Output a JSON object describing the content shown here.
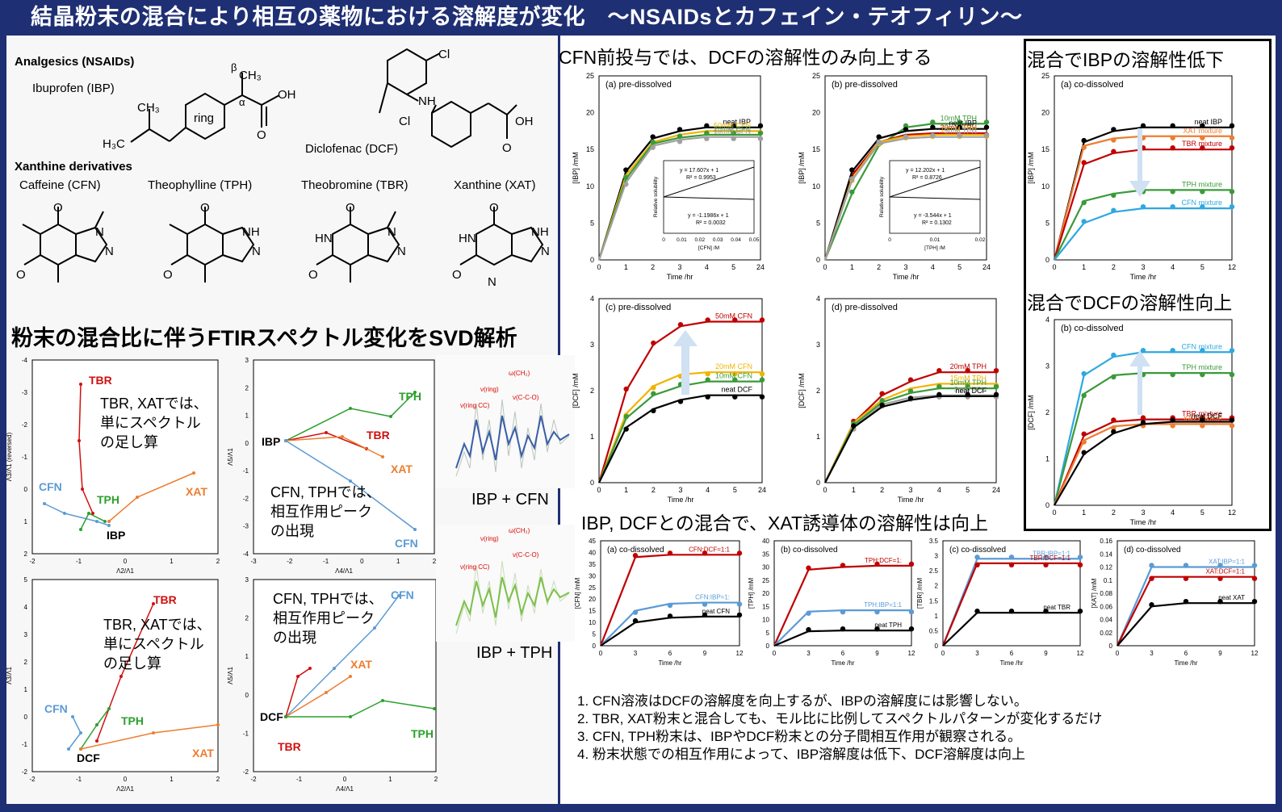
{
  "title": "結晶粉末の混合により相互の薬物における溶解度が変化　～NSAIDsとカフェイン・テオフィリン～",
  "structures": {
    "analgesics_heading": "Analgesics (NSAIDs)",
    "ibuprofen_label": "Ibuprofen (IBP)",
    "diclofenac_label": "Diclofenac (DCF)",
    "xanthine_heading": "Xanthine derivatives",
    "caffeine_label": "Caffeine (CFN)",
    "theophylline_label": "Theophylline (TPH)",
    "theobromine_label": "Theobromine (TBR)",
    "xanthine_label": "Xanthine (XAT)",
    "ring_label": "ring",
    "alpha": "α",
    "beta": "β"
  },
  "svd": {
    "heading": "粉末の混合比に伴うFTIRスペクトル変化をSVD解析",
    "note_sum": [
      "TBR, XATでは、",
      "単にスペクトル",
      "の足し算"
    ],
    "note_interact": [
      "CFN, TPHでは、",
      "相互作用ピーク",
      "の出現"
    ],
    "plots": [
      {
        "xlabel": "Λ2/Λ1",
        "ylabel": "Λ3/Λ1 (reversed)",
        "xticks": [
          "-2",
          "-1",
          "0",
          "1",
          "2"
        ],
        "yticks": [
          "-4",
          "-3",
          "-2",
          "-1",
          "0",
          "1",
          "2"
        ],
        "labels": [
          "TBR",
          "CFN",
          "TPH",
          "IBP",
          "XAT"
        ]
      },
      {
        "xlabel": "Λ4/Λ1",
        "ylabel": "Λ5/Λ1",
        "xticks": [
          "-3",
          "-2",
          "-1",
          "0",
          "1",
          "2"
        ],
        "yticks": [
          "3",
          "2",
          "1",
          "0",
          "-1",
          "-2",
          "-3",
          "-4"
        ],
        "labels": [
          "TPH",
          "TBR",
          "IBP",
          "XAT",
          "CFN"
        ]
      },
      {
        "xlabel": "Λ2/Λ1",
        "ylabel": "Λ3/Λ1",
        "xticks": [
          "-2",
          "-1",
          "0",
          "1",
          "2"
        ],
        "yticks": [
          "5",
          "4",
          "3",
          "2",
          "1",
          "0",
          "-1",
          "-2"
        ],
        "labels": [
          "TBR",
          "CFN",
          "TPH",
          "DCF",
          "XAT"
        ]
      },
      {
        "xlabel": "Λ4/Λ1",
        "ylabel": "Λ5/Λ1",
        "xticks": [
          "-2",
          "-1",
          "0",
          "1",
          "2"
        ],
        "yticks": [
          "3",
          "2",
          "1",
          "0",
          "-1",
          "-2"
        ],
        "labels": [
          "CFN",
          "XAT",
          "DCF",
          "TBR",
          "TPH"
        ]
      }
    ],
    "spectra_labels": [
      "IBP + CFN",
      "IBP + TPH"
    ]
  },
  "chart_data": [
    {
      "type": "line",
      "title": "(a) pre-dissolved",
      "xlabel": "Time /hr",
      "ylabel": "[IBP] /mM",
      "ylim": [
        0,
        25
      ],
      "xticks": [
        "0",
        "1",
        "2",
        "3",
        "4",
        "5",
        "24"
      ],
      "yticks": [
        "0",
        "5",
        "10",
        "15",
        "20",
        "25"
      ],
      "series": [
        {
          "name": "neat IBP",
          "color": "#000000",
          "values": [
            0,
            12,
            16.5,
            17.5,
            18,
            18,
            18
          ]
        },
        {
          "name": "50mM CFN",
          "color": "#f0b400",
          "values": [
            0,
            11.5,
            16,
            17,
            17.5,
            17.5,
            17.5
          ]
        },
        {
          "name": "20mM CFN",
          "color": "#3a9a3a",
          "values": [
            0,
            11,
            15.8,
            16.6,
            17,
            17,
            17
          ]
        },
        {
          "name": "10mM CFN",
          "color": "#a0a0a0",
          "values": [
            0,
            10.5,
            15.5,
            16.3,
            16.7,
            16.7,
            16.7
          ]
        }
      ],
      "inset": {
        "xlabel": "[CFN] /M",
        "ylabel": "Relative solubility",
        "eq1": "y = 17.607x + 1",
        "r1": "R² = 0.9953",
        "eq2": "y = -1.1986x + 1",
        "r2": "R² = 0.0032",
        "xticks": [
          "0",
          "0.01",
          "0.02",
          "0.03",
          "0.04",
          "0.05"
        ]
      }
    },
    {
      "type": "line",
      "title": "(b) pre-dissolved",
      "xlabel": "Time /hr",
      "ylabel": "[IBP] /mM",
      "ylim": [
        0,
        25
      ],
      "xticks": [
        "0",
        "1",
        "2",
        "3",
        "4",
        "5",
        "24"
      ],
      "yticks": [
        "0",
        "5",
        "10",
        "15",
        "20",
        "25"
      ],
      "series": [
        {
          "name": "10mM TPH",
          "color": "#3a9a3a",
          "values": [
            0,
            9,
            15.5,
            18,
            18.5,
            18.5,
            18.5
          ]
        },
        {
          "name": "20mM TPH",
          "color": "#c00000",
          "values": [
            0,
            11.5,
            16,
            17,
            17.2,
            17.2,
            17.2
          ]
        },
        {
          "name": "neat IBP",
          "color": "#000000",
          "values": [
            0,
            12,
            16.5,
            17.5,
            17.8,
            17.8,
            17.8
          ]
        },
        {
          "name": "15mM TPH",
          "color": "#f0b400",
          "values": [
            0,
            11,
            16,
            16.8,
            17,
            17,
            17
          ]
        },
        {
          "name": "5mM TPH",
          "color": "#a0a0a0",
          "values": [
            0,
            10.8,
            15.8,
            16.5,
            16.7,
            16.7,
            16.7
          ]
        }
      ],
      "inset": {
        "xlabel": "[TPH] /M",
        "ylabel": "Relative solubility",
        "eq1": "y = 12.202x + 1",
        "r1": "R² = 0.8726",
        "eq2": "y = -3.544x + 1",
        "r2": "R² = 0.1302",
        "xticks": [
          "0",
          "0.01",
          "0.02"
        ]
      }
    },
    {
      "type": "line",
      "title": "(c) pre-dissolved",
      "xlabel": "Time /hr",
      "ylabel": "[DCF] /mM",
      "ylim": [
        0,
        4
      ],
      "xticks": [
        "0",
        "1",
        "2",
        "3",
        "4",
        "5",
        "24"
      ],
      "yticks": [
        "0",
        "1",
        "2",
        "3",
        "4"
      ],
      "series": [
        {
          "name": "50mM CFN",
          "color": "#c00000",
          "values": [
            0,
            2.0,
            3.0,
            3.4,
            3.5,
            3.5,
            3.5
          ]
        },
        {
          "name": "20mM CFN",
          "color": "#f0b400",
          "values": [
            0,
            1.5,
            2.1,
            2.35,
            2.4,
            2.4,
            2.4
          ]
        },
        {
          "name": "10mM CFN",
          "color": "#3a9a3a",
          "values": [
            0,
            1.4,
            1.9,
            2.1,
            2.2,
            2.2,
            2.2
          ]
        },
        {
          "name": "neat DCF",
          "color": "#000000",
          "values": [
            0,
            1.2,
            1.6,
            1.8,
            1.9,
            1.9,
            1.9
          ]
        }
      ]
    },
    {
      "type": "line",
      "title": "(d) pre-dissolved",
      "xlabel": "Time /hr",
      "ylabel": "[DCF] /mM",
      "ylim": [
        0,
        4
      ],
      "xticks": [
        "0",
        "1",
        "2",
        "3",
        "4",
        "5",
        "24"
      ],
      "yticks": [
        "0",
        "1",
        "2",
        "3",
        "4"
      ],
      "series": [
        {
          "name": "20mM TPH",
          "color": "#c00000",
          "values": [
            0,
            1.3,
            1.9,
            2.2,
            2.4,
            2.4,
            2.4
          ]
        },
        {
          "name": "15mM TPH",
          "color": "#f0b400",
          "values": [
            0,
            1.3,
            1.8,
            2.05,
            2.15,
            2.15,
            2.15
          ]
        },
        {
          "name": "10mM TPH",
          "color": "#3a9a3a",
          "values": [
            0,
            1.25,
            1.75,
            1.95,
            2.05,
            2.05,
            2.05
          ]
        },
        {
          "name": "5mM TPH",
          "color": "#a0a0a0",
          "values": [
            0,
            1.2,
            1.7,
            1.85,
            1.9,
            1.9,
            1.9
          ]
        },
        {
          "name": "neat DCF",
          "color": "#000000",
          "values": [
            0,
            1.2,
            1.65,
            1.8,
            1.88,
            1.88,
            1.88
          ]
        }
      ]
    },
    {
      "type": "line",
      "title": "(a) co-dissolved",
      "xlabel": "Time /hr",
      "ylabel": "[CFN] /mM",
      "ylim": [
        0,
        45
      ],
      "xticks": [
        "0",
        "3",
        "6",
        "9",
        "12"
      ],
      "yticks": [
        "0",
        "5",
        "10",
        "15",
        "20",
        "25",
        "30",
        "35",
        "40",
        "45"
      ],
      "series": [
        {
          "name": "CFN:DCF=1:1",
          "color": "#c00000",
          "values": [
            0,
            38,
            39,
            39,
            39
          ]
        },
        {
          "name": "CFN:IBP=1:",
          "color": "#5b9bd5",
          "values": [
            0,
            15,
            18,
            18.5,
            18.5
          ]
        },
        {
          "name": "neat CFN",
          "color": "#000000",
          "values": [
            0,
            10,
            12,
            12.5,
            12.5
          ]
        }
      ]
    },
    {
      "type": "line",
      "title": "(b) co-dissolved",
      "xlabel": "Time /hr",
      "ylabel": "[TPH] /mM",
      "ylim": [
        0,
        40
      ],
      "xticks": [
        "0",
        "3",
        "6",
        "9",
        "12"
      ],
      "yticks": [
        "0",
        "5",
        "10",
        "15",
        "20",
        "25",
        "30",
        "35",
        "40"
      ],
      "series": [
        {
          "name": "TPH:DCF=1:",
          "color": "#c00000",
          "values": [
            0,
            29,
            30,
            30.5,
            30.5
          ]
        },
        {
          "name": "TPH:IBP=1:1",
          "color": "#5b9bd5",
          "values": [
            0,
            13,
            13.5,
            13.5,
            13.5
          ]
        },
        {
          "name": "neat TPH",
          "color": "#000000",
          "values": [
            0,
            5.5,
            5.8,
            5.8,
            5.8
          ]
        }
      ]
    },
    {
      "type": "line",
      "title": "(c) co-dissolved",
      "xlabel": "Time /hr",
      "ylabel": "[TBR] /mM",
      "ylim": [
        0,
        3.5
      ],
      "xticks": [
        "0",
        "3",
        "6",
        "9",
        "12"
      ],
      "yticks": [
        "0",
        "0.5",
        "1",
        "1.5",
        "2",
        "2.5",
        "3",
        "3.5"
      ],
      "series": [
        {
          "name": "TBR:IBP=1:1",
          "color": "#5b9bd5",
          "values": [
            0,
            2.9,
            2.9,
            2.9,
            2.9
          ]
        },
        {
          "name": "TBR:DCF=1:1",
          "color": "#c00000",
          "values": [
            0,
            2.75,
            2.75,
            2.75,
            2.75
          ]
        },
        {
          "name": "neat TBR",
          "color": "#000000",
          "values": [
            0,
            1.1,
            1.1,
            1.1,
            1.1
          ]
        }
      ]
    },
    {
      "type": "line",
      "title": "(d) co-dissolved",
      "xlabel": "Time /hr",
      "ylabel": "[XAT] /mM",
      "ylim": [
        0,
        0.16
      ],
      "xticks": [
        "0",
        "3",
        "6",
        "9",
        "12"
      ],
      "yticks": [
        "0",
        "0.02",
        "0.04",
        "0.06",
        "0.08",
        "0.1",
        "0.12",
        "0.14",
        "0.16"
      ],
      "series": [
        {
          "name": "XAT:IBP=1:1",
          "color": "#5b9bd5",
          "values": [
            0,
            0.12,
            0.12,
            0.12,
            0.12
          ]
        },
        {
          "name": "XAT:DCF=1:1",
          "color": "#c00000",
          "values": [
            0,
            0.105,
            0.105,
            0.105,
            0.105
          ]
        },
        {
          "name": "neat XAT",
          "color": "#000000",
          "values": [
            0,
            0.06,
            0.065,
            0.065,
            0.065
          ]
        }
      ]
    },
    {
      "type": "line",
      "title": "(a) co-dissolved",
      "xlabel": "Time /hr",
      "ylabel": "[IBP] /mM",
      "ylim": [
        0,
        25
      ],
      "xticks": [
        "0",
        "1",
        "2",
        "3",
        "4",
        "5",
        "12"
      ],
      "yticks": [
        "0",
        "5",
        "10",
        "15",
        "20",
        "25"
      ],
      "series": [
        {
          "name": "neat IBP",
          "color": "#000000",
          "values": [
            0,
            16,
            17.5,
            18,
            18,
            18,
            18
          ]
        },
        {
          "name": "XAT mixture",
          "color": "#ed7d31",
          "values": [
            0,
            15.5,
            16.5,
            16.8,
            16.8,
            16.8,
            16.8
          ]
        },
        {
          "name": "TBR mixture",
          "color": "#c00000",
          "values": [
            0,
            13,
            14.5,
            15,
            15,
            15,
            15
          ]
        },
        {
          "name": "TPH mixture",
          "color": "#3a9a3a",
          "values": [
            0,
            8,
            9,
            9.5,
            9.5,
            9.5,
            9.5
          ]
        },
        {
          "name": "CFN mixture",
          "color": "#2fa8e0",
          "values": [
            0,
            5,
            6.5,
            7,
            7,
            7,
            7
          ]
        }
      ]
    },
    {
      "type": "line",
      "title": "(b) co-dissolved",
      "xlabel": "Time /hr",
      "ylabel": "[DCF] /mM",
      "ylim": [
        0,
        4
      ],
      "xticks": [
        "0",
        "1",
        "2",
        "3",
        "4",
        "5",
        "12"
      ],
      "yticks": [
        "0",
        "1",
        "2",
        "3",
        "4"
      ],
      "series": [
        {
          "name": "CFN mixture",
          "color": "#2fa8e0",
          "values": [
            0,
            2.8,
            3.2,
            3.3,
            3.3,
            3.3,
            3.3
          ]
        },
        {
          "name": "TPH mixture",
          "color": "#3a9a3a",
          "values": [
            0,
            2.4,
            2.8,
            2.85,
            2.85,
            2.85,
            2.85
          ]
        },
        {
          "name": "TBR mixture",
          "color": "#c00000",
          "values": [
            0,
            1.5,
            1.8,
            1.85,
            1.85,
            1.85,
            1.85
          ]
        },
        {
          "name": "XAT mixture",
          "color": "#ed7d31",
          "values": [
            0,
            1.4,
            1.7,
            1.75,
            1.75,
            1.75,
            1.75
          ]
        },
        {
          "name": "neat DCF",
          "color": "#000000",
          "values": [
            0,
            1.1,
            1.55,
            1.75,
            1.8,
            1.8,
            1.8
          ]
        }
      ]
    }
  ],
  "right": {
    "heading_cfn": "CFN前投与では、DCFの溶解性のみ向上する",
    "heading_xat": "IBP, DCFとの混合で、XAT誘導体の溶解性は向上",
    "heading_ibp_down": "混合でIBPの溶解性低下",
    "heading_dcf_up": "混合でDCFの溶解性向上"
  },
  "conclusions": [
    "1. CFN溶液はDCFの溶解度を向上するが、IBPの溶解度には影響しない。",
    "2. TBR, XAT粉末と混合しても、モル比に比例してスペクトルパターンが変化するだけ",
    "3. CFN, TPH粉末は、IBPやDCF粉末との分子間相互作用が観察される。",
    "4. 粉末状態での相互作用によって、IBP溶解度は低下、DCF溶解度は向上"
  ]
}
